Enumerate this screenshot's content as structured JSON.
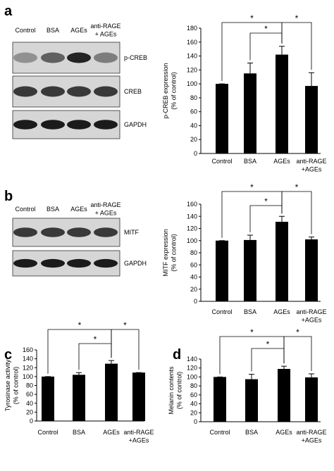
{
  "panels": [
    {
      "letter": "a",
      "blot": {
        "lanes": [
          "Control",
          "BSA",
          "AGEs",
          "anti-RAGE\n+ AGEs"
        ],
        "rows": [
          "p-CREB",
          "CREB",
          "GAPDH"
        ]
      }
    },
    {
      "letter": "b",
      "blot": {
        "lanes": [
          "Control",
          "BSA",
          "AGEs",
          "anti-RAGE\n+ AGEs"
        ],
        "rows": [
          "MITF",
          "GAPDH"
        ]
      }
    },
    {
      "letter": "c"
    },
    {
      "letter": "d"
    }
  ],
  "chart_data": [
    {
      "type": "bar",
      "y_label": "p-CREB expression\n(% of control)",
      "categories": [
        "Control",
        "BSA",
        "AGEs",
        "anti-RAGE\n+AGEs"
      ],
      "values": [
        100,
        115,
        142,
        97
      ],
      "errors": [
        0,
        15,
        12,
        19
      ],
      "color": "#000000",
      "ylim": [
        0,
        180
      ],
      "yticks": [
        0,
        20,
        40,
        60,
        80,
        100,
        120,
        140,
        160,
        180
      ],
      "comparisons": [
        {
          "pair": [
            "Control",
            "AGEs"
          ],
          "label": "*"
        },
        {
          "pair": [
            "BSA",
            "AGEs"
          ],
          "label": "*"
        },
        {
          "pair": [
            "AGEs",
            "anti-RAGE\n+AGEs"
          ],
          "label": "*"
        }
      ]
    },
    {
      "type": "bar",
      "y_label": "MITF expression\n(% of control)",
      "categories": [
        "Control",
        "BSA",
        "AGEs",
        "anti-RAGE\n+AGEs"
      ],
      "values": [
        100,
        101,
        131,
        102
      ],
      "errors": [
        0,
        8,
        9,
        4
      ],
      "color": "#000000",
      "ylim": [
        0,
        160
      ],
      "yticks": [
        0,
        20,
        40,
        60,
        80,
        100,
        120,
        140,
        160
      ],
      "comparisons": [
        {
          "pair": [
            "Control",
            "AGEs"
          ],
          "label": "*"
        },
        {
          "pair": [
            "BSA",
            "AGEs"
          ],
          "label": "*"
        },
        {
          "pair": [
            "AGEs",
            "anti-RAGE\n+AGEs"
          ],
          "label": "*"
        }
      ]
    },
    {
      "type": "bar",
      "y_label": "Tyrosinase activity\n(% of control)",
      "categories": [
        "Control",
        "BSA",
        "AGEs",
        "anti-RAGE\n+AGEs"
      ],
      "values": [
        100,
        104,
        129,
        109
      ],
      "errors": [
        0,
        5,
        7,
        0
      ],
      "color": "#000000",
      "ylim": [
        0,
        160
      ],
      "yticks": [
        0,
        20,
        40,
        60,
        80,
        100,
        120,
        140,
        160
      ],
      "comparisons": [
        {
          "pair": [
            "Control",
            "AGEs"
          ],
          "label": "*"
        },
        {
          "pair": [
            "BSA",
            "AGEs"
          ],
          "label": "*"
        },
        {
          "pair": [
            "AGEs",
            "anti-RAGE\n+AGEs"
          ],
          "label": "*"
        }
      ]
    },
    {
      "type": "bar",
      "y_label": "Melanin contents\n(% of control)",
      "categories": [
        "Control",
        "BSA",
        "AGEs",
        "anti-RAGE\n+AGEs"
      ],
      "values": [
        100,
        95,
        118,
        99
      ],
      "errors": [
        0,
        11,
        6,
        8
      ],
      "color": "#000000",
      "ylim": [
        0,
        140
      ],
      "yticks": [
        0,
        20,
        40,
        60,
        80,
        100,
        120,
        140
      ],
      "comparisons": [
        {
          "pair": [
            "Control",
            "AGEs"
          ],
          "label": "*"
        },
        {
          "pair": [
            "BSA",
            "AGEs"
          ],
          "label": "*"
        },
        {
          "pair": [
            "AGEs",
            "anti-RAGE\n+AGEs"
          ],
          "label": "*"
        }
      ]
    }
  ]
}
